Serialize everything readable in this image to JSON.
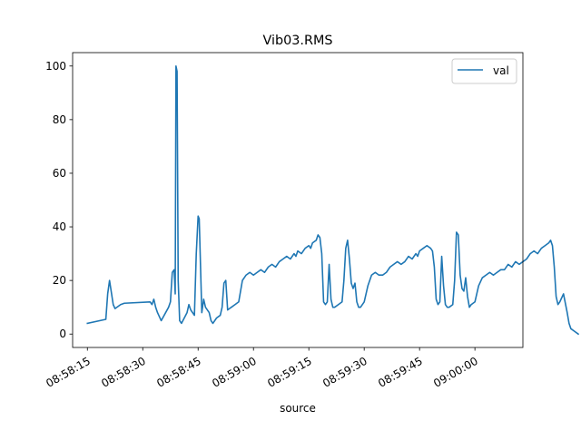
{
  "chart_data": {
    "type": "line",
    "title": "Vib03.RMS",
    "xlabel": "source",
    "ylabel": "",
    "x_axis": {
      "type": "time",
      "range": [
        "08:58:11",
        "09:00:13"
      ],
      "ticks": [
        "08:58:15",
        "08:58:30",
        "08:58:45",
        "08:59:00",
        "08:59:15",
        "08:59:30",
        "08:59:45",
        "09:00:00"
      ]
    },
    "y_axis": {
      "range": [
        -5,
        105
      ],
      "ticks": [
        0,
        20,
        40,
        60,
        80,
        100
      ]
    },
    "grid": false,
    "legend": {
      "placement": "top-right"
    },
    "colors": {
      "val": "#1f77b4"
    },
    "series": [
      {
        "name": "val",
        "points": [
          [
            "08:58:15",
            4
          ],
          [
            "08:58:20",
            5.5
          ],
          [
            "08:58:20.5",
            15
          ],
          [
            "08:58:21",
            20
          ],
          [
            "08:58:22",
            11
          ],
          [
            "08:58:22.5",
            9.5
          ],
          [
            "08:58:24",
            11
          ],
          [
            "08:58:25",
            11.5
          ],
          [
            "08:58:32",
            12
          ],
          [
            "08:58:32.5",
            11
          ],
          [
            "08:58:33",
            13
          ],
          [
            "08:58:33.5",
            10
          ],
          [
            "08:58:34",
            8
          ],
          [
            "08:58:35",
            5
          ],
          [
            "08:58:37",
            10
          ],
          [
            "08:58:37.5",
            12
          ],
          [
            "08:58:38",
            23
          ],
          [
            "08:58:38.5",
            24
          ],
          [
            "08:58:38.8",
            15
          ],
          [
            "08:58:39",
            100
          ],
          [
            "08:58:39.3",
            98
          ],
          [
            "08:58:39.6",
            20
          ],
          [
            "08:58:40",
            5
          ],
          [
            "08:58:40.5",
            4
          ],
          [
            "08:58:42",
            8
          ],
          [
            "08:58:42.5",
            11
          ],
          [
            "08:58:43",
            9
          ],
          [
            "08:58:44",
            7
          ],
          [
            "08:58:44.5",
            30
          ],
          [
            "08:58:45",
            44
          ],
          [
            "08:58:45.3",
            43
          ],
          [
            "08:58:46",
            8
          ],
          [
            "08:58:46.5",
            13
          ],
          [
            "08:58:47",
            10
          ],
          [
            "08:58:48",
            8
          ],
          [
            "08:58:48.5",
            5
          ],
          [
            "08:58:49",
            4
          ],
          [
            "08:58:50",
            6
          ],
          [
            "08:58:51",
            7
          ],
          [
            "08:58:51.5",
            10
          ],
          [
            "08:58:52",
            19
          ],
          [
            "08:58:52.5",
            20
          ],
          [
            "08:58:53",
            9
          ],
          [
            "08:58:54",
            10
          ],
          [
            "08:58:55",
            11
          ],
          [
            "08:58:56",
            12
          ],
          [
            "08:58:57",
            20
          ],
          [
            "08:58:58",
            22
          ],
          [
            "08:58:59",
            23
          ],
          [
            "08:59:00",
            22
          ],
          [
            "08:59:01",
            23
          ],
          [
            "08:59:02",
            24
          ],
          [
            "08:59:03",
            23
          ],
          [
            "08:59:04",
            25
          ],
          [
            "08:59:05",
            26
          ],
          [
            "08:59:06",
            25
          ],
          [
            "08:59:07",
            27
          ],
          [
            "08:59:08",
            28
          ],
          [
            "08:59:09",
            29
          ],
          [
            "08:59:10",
            28
          ],
          [
            "08:59:11",
            30
          ],
          [
            "08:59:11.5",
            29
          ],
          [
            "08:59:12",
            31
          ],
          [
            "08:59:13",
            30
          ],
          [
            "08:59:14",
            32
          ],
          [
            "08:59:15",
            33
          ],
          [
            "08:59:15.5",
            32
          ],
          [
            "08:59:16",
            34
          ],
          [
            "08:59:17",
            35
          ],
          [
            "08:59:17.5",
            37
          ],
          [
            "08:59:18",
            36
          ],
          [
            "08:59:18.5",
            30
          ],
          [
            "08:59:19",
            12
          ],
          [
            "08:59:19.5",
            11
          ],
          [
            "08:59:20",
            12
          ],
          [
            "08:59:20.5",
            26
          ],
          [
            "08:59:21",
            13
          ],
          [
            "08:59:21.5",
            10
          ],
          [
            "08:59:22",
            10
          ],
          [
            "08:59:23",
            11
          ],
          [
            "08:59:24",
            12
          ],
          [
            "08:59:24.5",
            20
          ],
          [
            "08:59:25",
            32
          ],
          [
            "08:59:25.5",
            35
          ],
          [
            "08:59:26",
            28
          ],
          [
            "08:59:26.5",
            19
          ],
          [
            "08:59:27",
            17
          ],
          [
            "08:59:27.5",
            19
          ],
          [
            "08:59:28",
            12
          ],
          [
            "08:59:28.5",
            10
          ],
          [
            "08:59:29",
            10
          ],
          [
            "08:59:30",
            12
          ],
          [
            "08:59:31",
            18
          ],
          [
            "08:59:32",
            22
          ],
          [
            "08:59:33",
            23
          ],
          [
            "08:59:34",
            22
          ],
          [
            "08:59:35",
            22
          ],
          [
            "08:59:36",
            23
          ],
          [
            "08:59:37",
            25
          ],
          [
            "08:59:38",
            26
          ],
          [
            "08:59:39",
            27
          ],
          [
            "08:59:40",
            26
          ],
          [
            "08:59:41",
            27
          ],
          [
            "08:59:42",
            29
          ],
          [
            "08:59:43",
            28
          ],
          [
            "08:59:44",
            30
          ],
          [
            "08:59:44.5",
            29
          ],
          [
            "08:59:45",
            31
          ],
          [
            "08:59:46",
            32
          ],
          [
            "08:59:47",
            33
          ],
          [
            "08:59:48",
            32
          ],
          [
            "08:59:48.5",
            31
          ],
          [
            "08:59:49",
            25
          ],
          [
            "08:59:49.5",
            13
          ],
          [
            "08:59:50",
            11
          ],
          [
            "08:59:50.5",
            12
          ],
          [
            "08:59:51",
            29
          ],
          [
            "08:59:51.5",
            18
          ],
          [
            "08:59:52",
            11
          ],
          [
            "08:59:52.5",
            10
          ],
          [
            "08:59:53",
            10
          ],
          [
            "08:59:54",
            11
          ],
          [
            "08:59:54.5",
            20
          ],
          [
            "08:59:55",
            38
          ],
          [
            "08:59:55.5",
            37
          ],
          [
            "08:59:56",
            22
          ],
          [
            "08:59:56.5",
            17
          ],
          [
            "08:59:57",
            16
          ],
          [
            "08:59:57.5",
            21
          ],
          [
            "08:59:58",
            14
          ],
          [
            "08:59:58.5",
            10
          ],
          [
            "08:59:59",
            11
          ],
          [
            "09:00:00",
            12
          ],
          [
            "09:00:00.5",
            15
          ],
          [
            "09:00:01",
            18
          ],
          [
            "09:00:02",
            21
          ],
          [
            "09:00:03",
            22
          ],
          [
            "09:00:04",
            23
          ],
          [
            "09:00:05",
            22
          ],
          [
            "09:00:06",
            23
          ],
          [
            "09:00:07",
            24
          ],
          [
            "09:00:08",
            24
          ],
          [
            "09:00:09",
            26
          ],
          [
            "09:00:10",
            25
          ],
          [
            "09:00:11",
            27
          ],
          [
            "09:00:12",
            26
          ],
          [
            "09:00:13",
            27
          ],
          [
            "09:00:14",
            28
          ],
          [
            "09:00:15",
            30
          ],
          [
            "09:00:16",
            31
          ],
          [
            "09:00:17",
            30
          ],
          [
            "09:00:18",
            32
          ],
          [
            "09:00:19",
            33
          ],
          [
            "09:00:20",
            34
          ],
          [
            "09:00:20.5",
            35
          ],
          [
            "09:00:21",
            33
          ],
          [
            "09:00:21.5",
            25
          ],
          [
            "09:00:22",
            14
          ],
          [
            "09:00:22.5",
            11
          ],
          [
            "09:00:23",
            12
          ],
          [
            "09:00:24",
            15
          ],
          [
            "09:00:25",
            8
          ],
          [
            "09:00:25.5",
            4
          ],
          [
            "09:00:26",
            2
          ],
          [
            "09:00:27",
            1
          ],
          [
            "09:00:28",
            0
          ]
        ]
      }
    ]
  }
}
